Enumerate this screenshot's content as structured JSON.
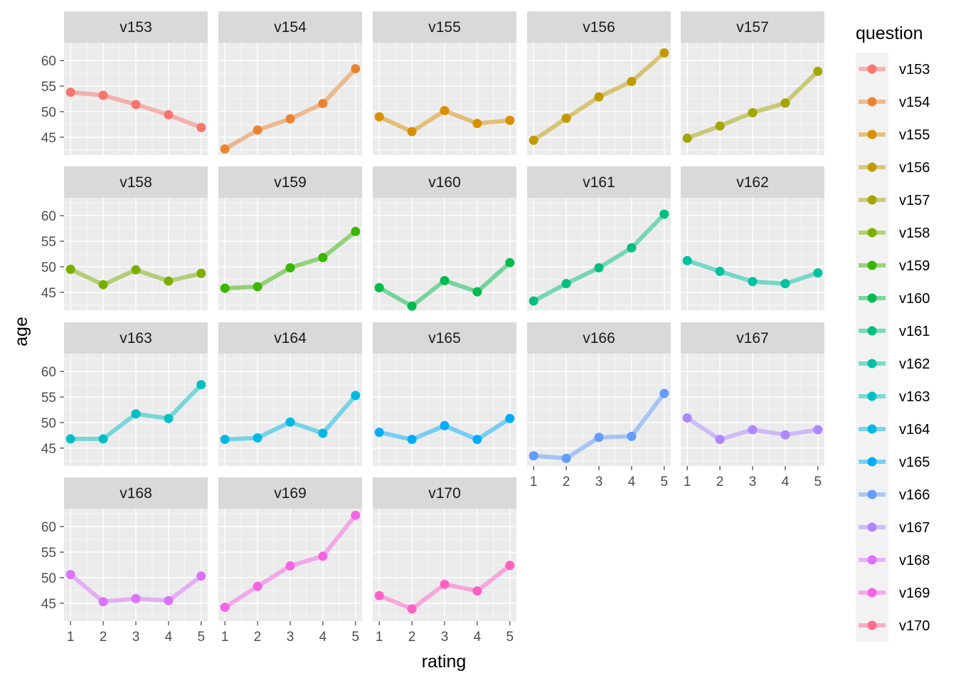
{
  "chart_data": {
    "type": "line",
    "layout": "facet_wrap",
    "ncol": 5,
    "xlabel": "rating",
    "ylabel": "age",
    "x": [
      1,
      2,
      3,
      4,
      5
    ],
    "x_ticks": [
      1,
      2,
      3,
      4,
      5
    ],
    "y_ticks": [
      45,
      50,
      55,
      60
    ],
    "ylim": [
      41.5,
      63.5
    ],
    "xlim": [
      0.8,
      5.2
    ],
    "grid": true,
    "legend": {
      "title": "question",
      "position": "right"
    },
    "series": [
      {
        "name": "v153",
        "color": "#F8766D",
        "values": [
          53.8,
          53.2,
          51.4,
          49.4,
          46.9
        ]
      },
      {
        "name": "v154",
        "color": "#EA8331",
        "values": [
          42.7,
          46.4,
          48.6,
          51.6,
          58.4
        ]
      },
      {
        "name": "v155",
        "color": "#D89000",
        "values": [
          49.0,
          46.1,
          50.2,
          47.7,
          48.3
        ]
      },
      {
        "name": "v156",
        "color": "#C09B00",
        "values": [
          44.4,
          48.7,
          52.9,
          55.9,
          61.5
        ]
      },
      {
        "name": "v157",
        "color": "#A3A500",
        "values": [
          44.8,
          47.2,
          49.8,
          51.7,
          57.9
        ]
      },
      {
        "name": "v158",
        "color": "#7CAE00",
        "values": [
          49.5,
          46.5,
          49.4,
          47.2,
          48.7
        ]
      },
      {
        "name": "v159",
        "color": "#39B600",
        "values": [
          45.8,
          46.1,
          49.8,
          51.8,
          56.9
        ]
      },
      {
        "name": "v160",
        "color": "#00BB4E",
        "values": [
          45.9,
          42.3,
          47.3,
          45.1,
          50.8
        ]
      },
      {
        "name": "v161",
        "color": "#00BF7D",
        "values": [
          43.3,
          46.7,
          49.8,
          53.7,
          60.3
        ]
      },
      {
        "name": "v162",
        "color": "#00C1A3",
        "values": [
          51.2,
          49.1,
          47.1,
          46.7,
          48.8
        ]
      },
      {
        "name": "v163",
        "color": "#00BFC4",
        "values": [
          46.8,
          46.8,
          51.7,
          50.8,
          57.4
        ]
      },
      {
        "name": "v164",
        "color": "#00B9E3",
        "values": [
          46.7,
          47.0,
          50.1,
          47.9,
          55.3
        ]
      },
      {
        "name": "v165",
        "color": "#00ADFA",
        "values": [
          48.1,
          46.7,
          49.4,
          46.7,
          50.8
        ]
      },
      {
        "name": "v166",
        "color": "#619CFF",
        "values": [
          43.5,
          43.0,
          47.1,
          47.3,
          55.7
        ]
      },
      {
        "name": "v167",
        "color": "#AE87FF",
        "values": [
          50.9,
          46.7,
          48.6,
          47.6,
          48.6
        ]
      },
      {
        "name": "v168",
        "color": "#DB72FB",
        "values": [
          50.6,
          45.3,
          45.9,
          45.5,
          50.3
        ]
      },
      {
        "name": "v169",
        "color": "#F564E3",
        "values": [
          44.2,
          48.3,
          52.3,
          54.2,
          62.2
        ]
      },
      {
        "name": "v170",
        "color": "#FF61C3",
        "values": [
          46.5,
          43.9,
          48.7,
          47.4,
          52.4
        ]
      }
    ],
    "legend_key_color": "#FF6C91"
  }
}
